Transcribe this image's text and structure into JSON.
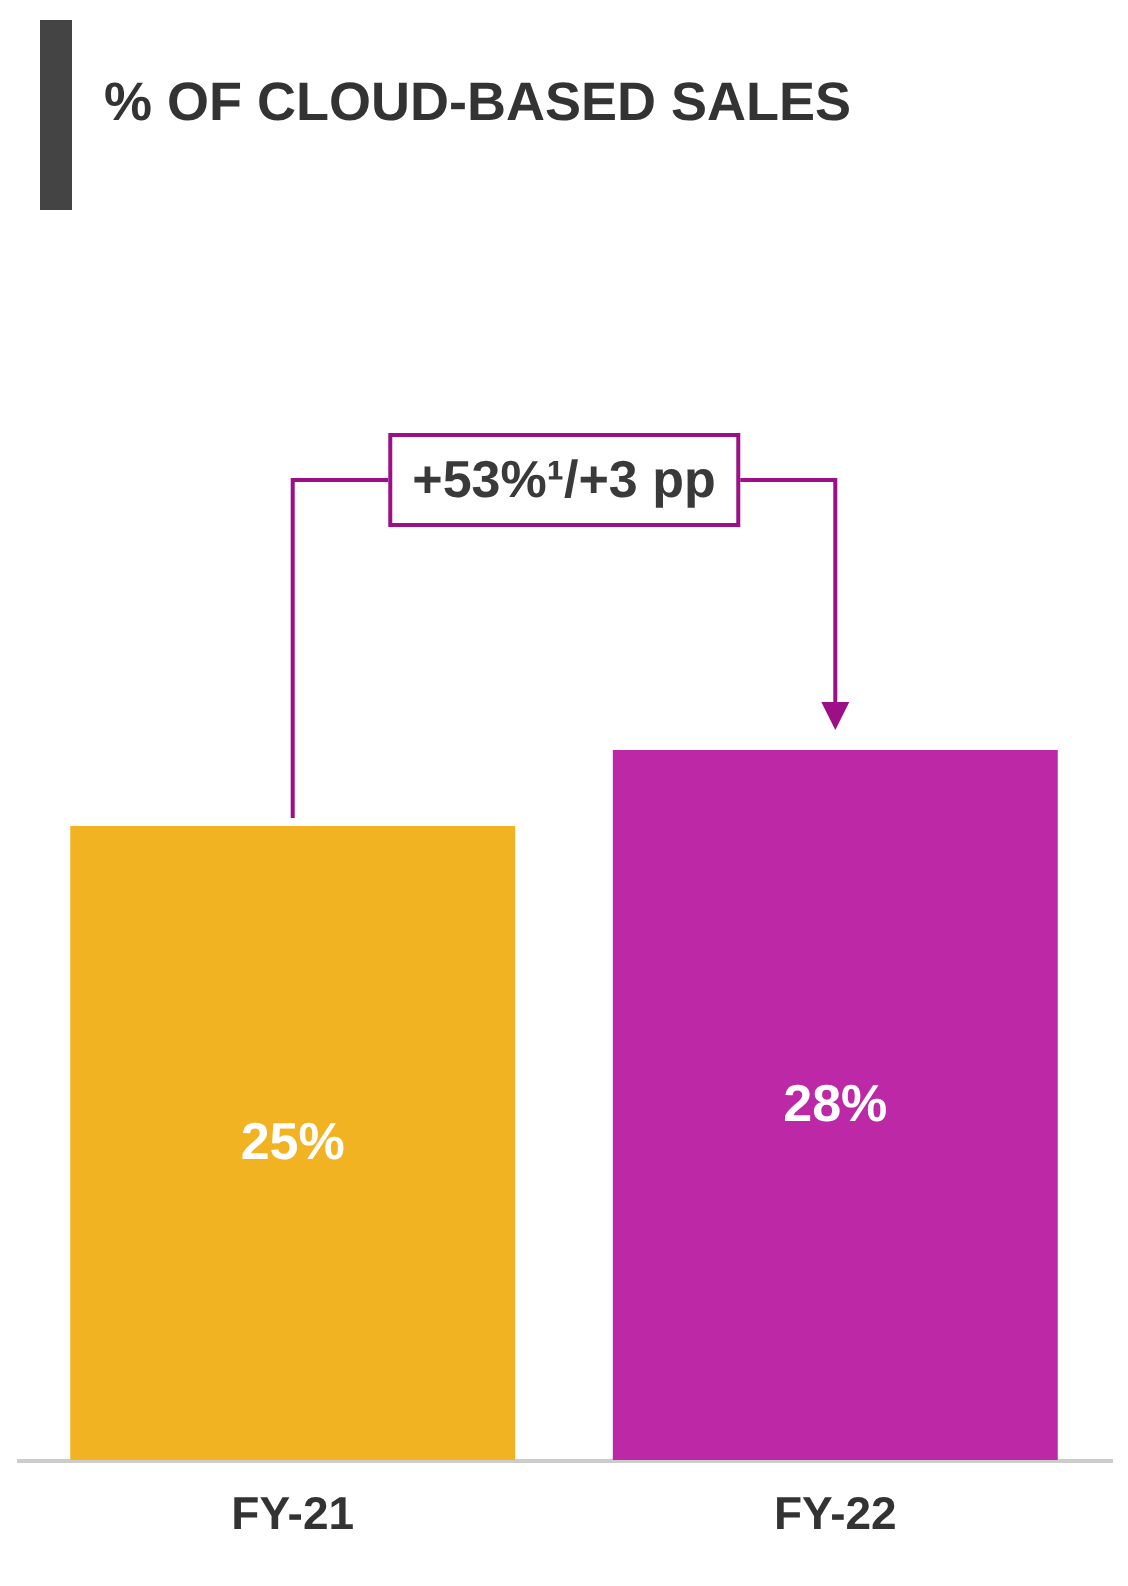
{
  "chart_data": {
    "type": "bar",
    "title": "% OF CLOUD-BASED SALES",
    "categories": [
      "FY-21",
      "FY-22"
    ],
    "values": [
      25,
      28
    ],
    "colors": [
      "#f2b322",
      "#bd28a6"
    ],
    "data_labels": true,
    "value_labels": [
      "25%",
      "28%"
    ],
    "annotations": [
      "+53%¹/+3 pp"
    ]
  }
}
